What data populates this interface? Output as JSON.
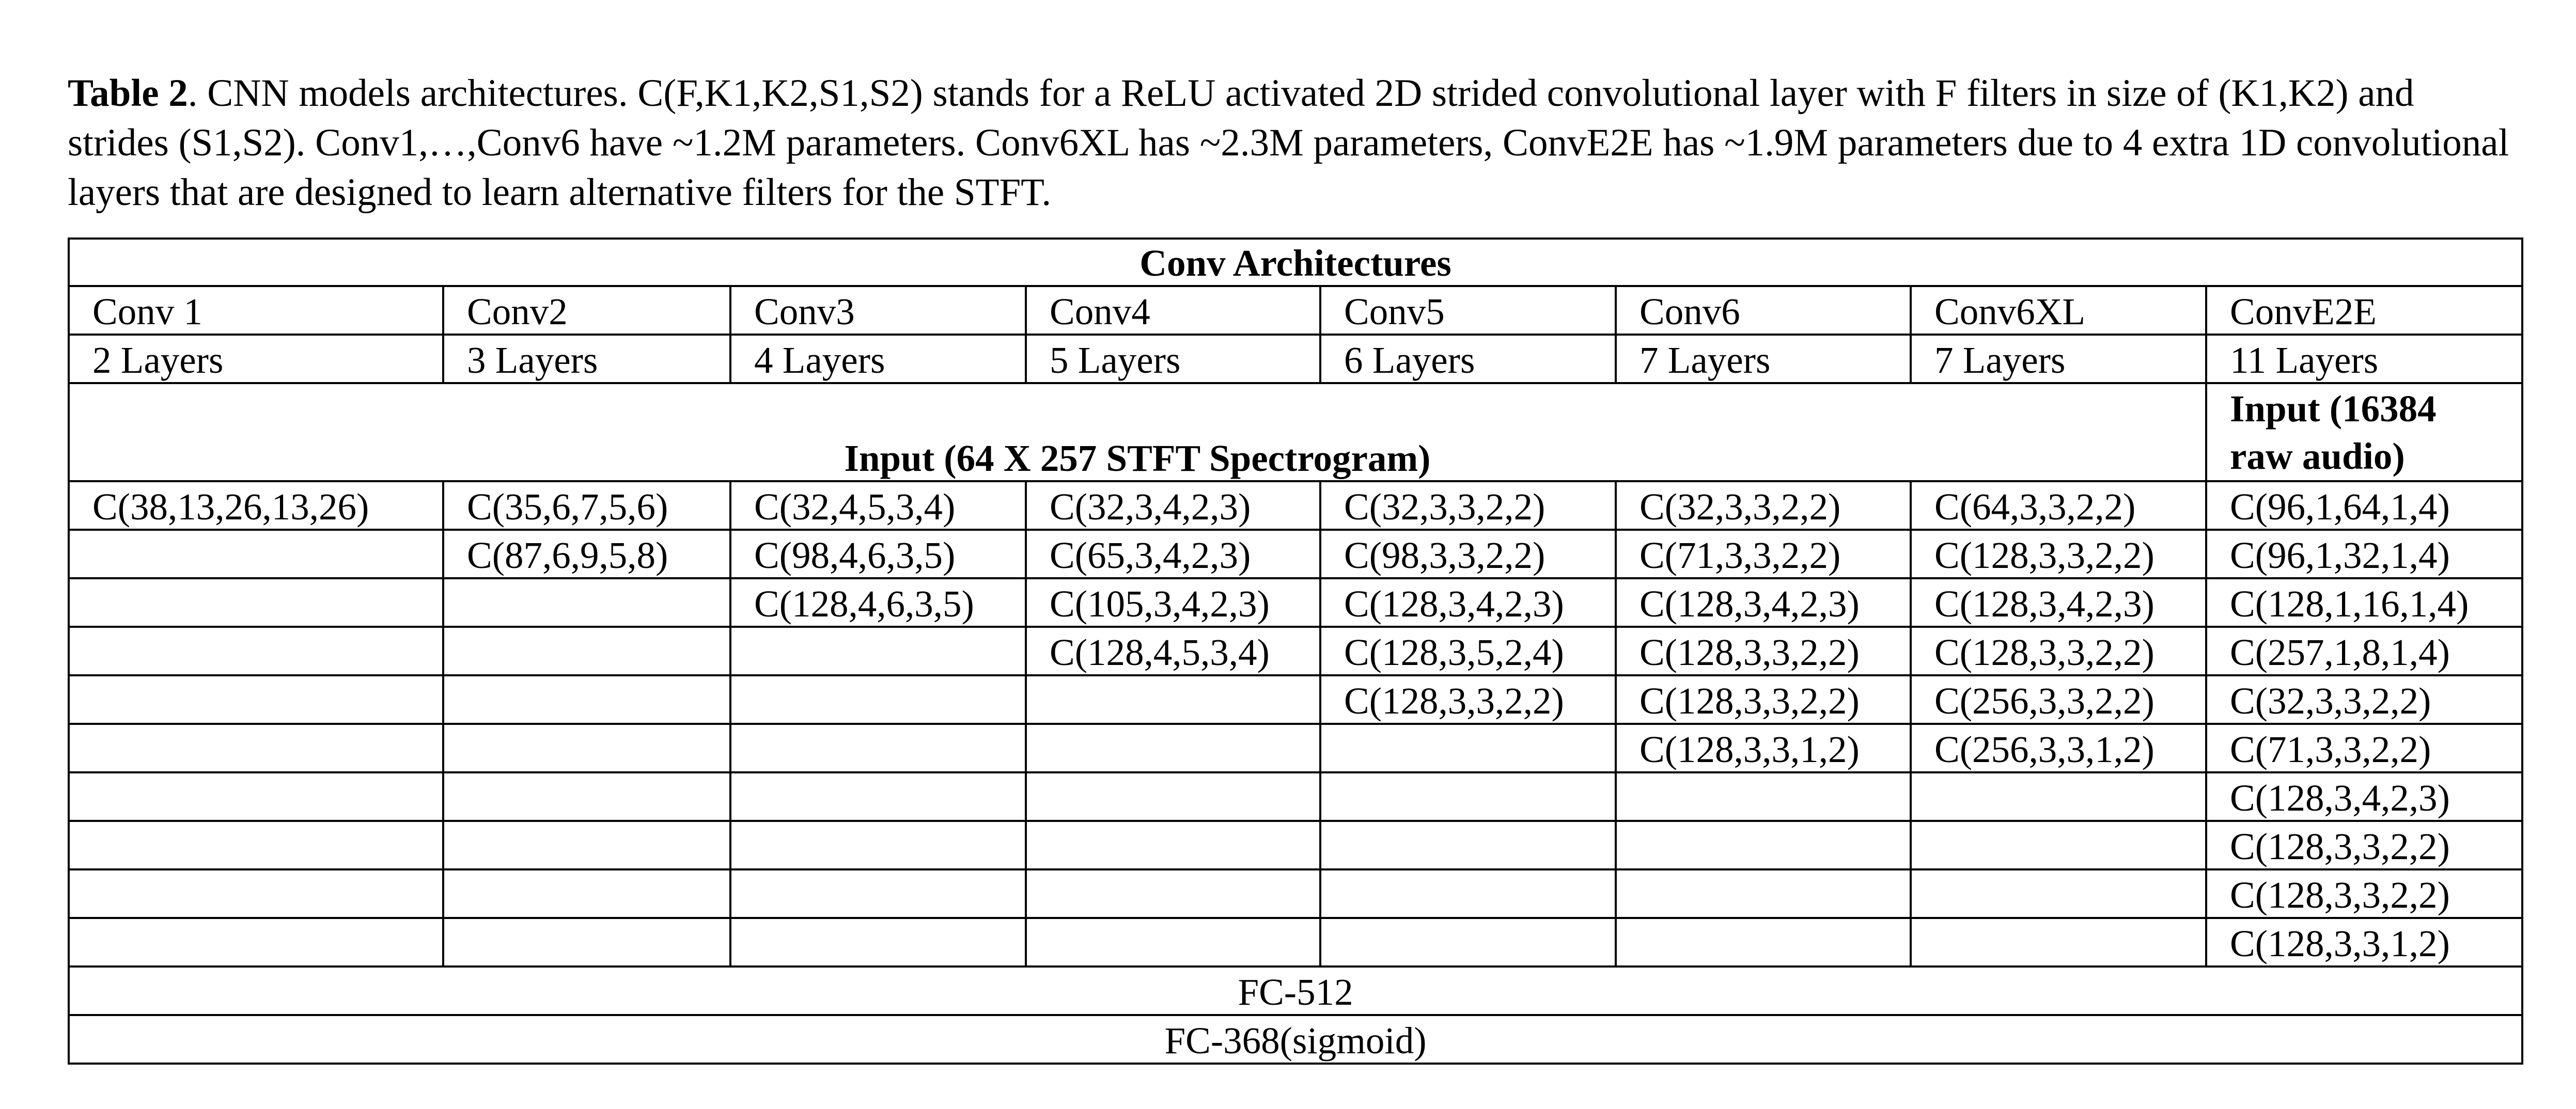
{
  "caption": {
    "label": "Table 2",
    "text": ". CNN models architectures. C(F,K1,K2,S1,S2) stands for a ReLU activated 2D strided convolutional layer with F filters in size of (K1,K2) and strides (S1,S2). Conv1,…,Conv6 have ~1.2M parameters. Conv6XL has ~2.3M parameters, ConvE2E has ~1.9M parameters due to 4 extra 1D convolutional layers that are designed to learn alternative filters for the STFT."
  },
  "table": {
    "title": "Conv Architectures",
    "models": [
      {
        "name": "Conv 1",
        "layers": "2 Layers"
      },
      {
        "name": "Conv2",
        "layers": "3 Layers"
      },
      {
        "name": "Conv3",
        "layers": "4 Layers"
      },
      {
        "name": "Conv4",
        "layers": "5 Layers"
      },
      {
        "name": "Conv5",
        "layers": "6 Layers"
      },
      {
        "name": "Conv6",
        "layers": "7 Layers"
      },
      {
        "name": "Conv6XL",
        "layers": "7 Layers"
      },
      {
        "name": "ConvE2E",
        "layers": "11 Layers"
      }
    ],
    "input_spectrogram": "Input (64 X 257 STFT Spectrogram)",
    "input_raw": "Input (16384 raw audio)",
    "rows": [
      [
        "C(38,13,26,13,26)",
        "C(35,6,7,5,6)",
        "C(32,4,5,3,4)",
        "C(32,3,4,2,3)",
        "C(32,3,3,2,2)",
        "C(32,3,3,2,2)",
        "C(64,3,3,2,2)",
        "C(96,1,64,1,4)"
      ],
      [
        "",
        "C(87,6,9,5,8)",
        "C(98,4,6,3,5)",
        "C(65,3,4,2,3)",
        "C(98,3,3,2,2)",
        "C(71,3,3,2,2)",
        "C(128,3,3,2,2)",
        "C(96,1,32,1,4)"
      ],
      [
        "",
        "",
        "C(128,4,6,3,5)",
        "C(105,3,4,2,3)",
        "C(128,3,4,2,3)",
        "C(128,3,4,2,3)",
        "C(128,3,4,2,3)",
        "C(128,1,16,1,4)"
      ],
      [
        "",
        "",
        "",
        "C(128,4,5,3,4)",
        "C(128,3,5,2,4)",
        "C(128,3,3,2,2)",
        "C(128,3,3,2,2)",
        "C(257,1,8,1,4)"
      ],
      [
        "",
        "",
        "",
        "",
        "C(128,3,3,2,2)",
        "C(128,3,3,2,2)",
        "C(256,3,3,2,2)",
        "C(32,3,3,2,2)"
      ],
      [
        "",
        "",
        "",
        "",
        "",
        "C(128,3,3,1,2)",
        "C(256,3,3,1,2)",
        "C(71,3,3,2,2)"
      ],
      [
        "",
        "",
        "",
        "",
        "",
        "",
        "",
        "C(128,3,4,2,3)"
      ],
      [
        "",
        "",
        "",
        "",
        "",
        "",
        "",
        "C(128,3,3,2,2)"
      ],
      [
        "",
        "",
        "",
        "",
        "",
        "",
        "",
        "C(128,3,3,2,2)"
      ],
      [
        "",
        "",
        "",
        "",
        "",
        "",
        "",
        "C(128,3,3,1,2)"
      ]
    ],
    "fc1": "FC-512",
    "fc2": "FC-368(sigmoid)"
  }
}
